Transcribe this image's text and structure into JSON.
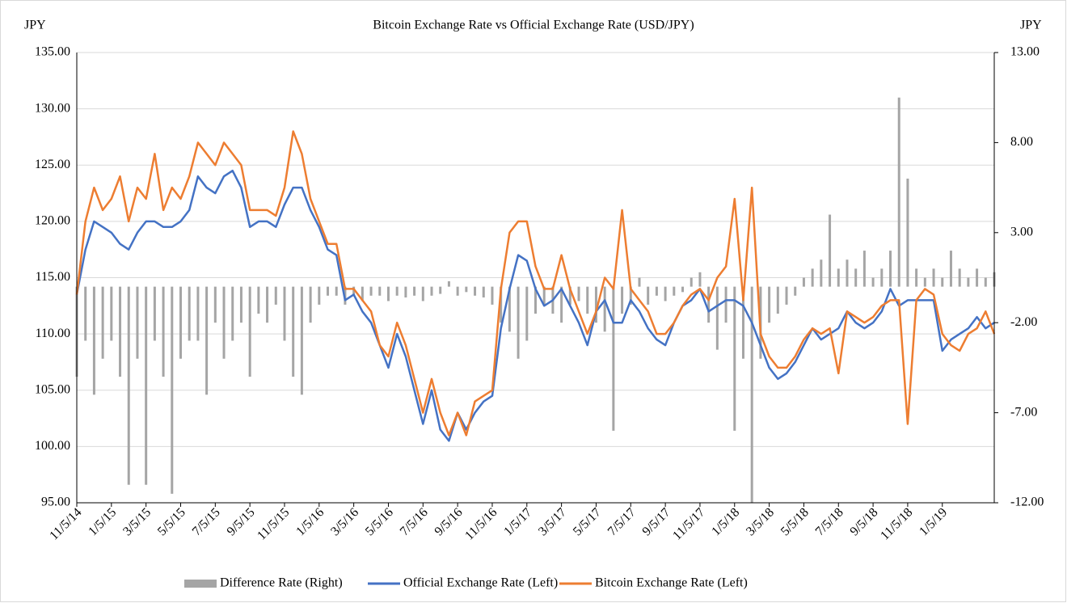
{
  "chart_data": {
    "type": "combo",
    "title": "Bitcoin Exchange Rate vs Official Exchange Rate (USD/JPY)",
    "y_label": "JPY",
    "y2_label": "JPY",
    "categories": [
      "11/5/14",
      null,
      null,
      null,
      "1/5/15",
      null,
      null,
      null,
      "3/5/15",
      null,
      null,
      null,
      "5/5/15",
      null,
      null,
      null,
      "7/5/15",
      null,
      null,
      null,
      "9/5/15",
      null,
      null,
      null,
      "11/5/15",
      null,
      null,
      null,
      "1/5/16",
      null,
      null,
      null,
      "3/5/16",
      null,
      null,
      null,
      "5/5/16",
      null,
      null,
      null,
      "7/5/16",
      null,
      null,
      null,
      "9/5/16",
      null,
      null,
      null,
      "11/5/16",
      null,
      null,
      null,
      "1/5/17",
      null,
      null,
      null,
      "3/5/17",
      null,
      null,
      null,
      "5/5/17",
      null,
      null,
      null,
      "7/5/17",
      null,
      null,
      null,
      "9/5/17",
      null,
      null,
      null,
      "11/5/17",
      null,
      null,
      null,
      "1/5/18",
      null,
      null,
      null,
      "3/5/18",
      null,
      null,
      null,
      "5/5/18",
      null,
      null,
      null,
      "7/5/18",
      null,
      null,
      null,
      "9/5/18",
      null,
      null,
      null,
      "11/5/18",
      null,
      null,
      null,
      "1/5/19",
      null,
      null,
      null,
      null,
      null,
      null
    ],
    "series": [
      {
        "name": "Difference Rate (Right)",
        "type": "bar",
        "axis": "y2",
        "color": "#a5a5a5",
        "values": [
          -5,
          -3,
          -6,
          -4,
          -3,
          -5,
          -11,
          -4,
          -11,
          -3,
          -5,
          -11.5,
          -4,
          -3,
          -3,
          -6,
          -2,
          -4,
          -3,
          -2,
          -5,
          -1.5,
          -2,
          -1,
          -3,
          -5,
          -6,
          -2,
          -1,
          -0.5,
          -0.5,
          -1,
          -0.5,
          -0.8,
          -0.5,
          -0.5,
          -0.8,
          -0.5,
          -0.6,
          -0.5,
          -0.8,
          -0.5,
          -0.4,
          0.3,
          -0.5,
          -0.3,
          -0.5,
          -0.6,
          -1,
          -2,
          -2.5,
          -4,
          -3,
          -1.5,
          -1,
          -1.5,
          -2,
          -1,
          -0.8,
          -1.5,
          -2,
          -2.5,
          -8,
          -1.5,
          -1,
          0.5,
          -1,
          -0.5,
          -0.8,
          -0.5,
          -0.3,
          0.5,
          0.8,
          -2,
          -3.5,
          -2,
          -8,
          -4,
          -12,
          -4,
          -2,
          -1.5,
          -1,
          -0.5,
          0.5,
          1,
          1.5,
          4,
          1,
          1.5,
          1,
          2,
          0.5,
          1,
          2,
          10.5,
          6,
          1,
          0.5,
          1,
          0.5,
          2,
          1,
          0.5,
          1,
          0.5,
          0.8
        ]
      },
      {
        "name": "Official Exchange Rate (Left)",
        "type": "line",
        "color": "#4472c4",
        "values": [
          113.5,
          117.5,
          120,
          119.5,
          119,
          118,
          117.5,
          119,
          120,
          120,
          119.5,
          119.5,
          120,
          121,
          124,
          123,
          122.5,
          124,
          124.5,
          123,
          119.5,
          120,
          120,
          119.5,
          121.5,
          123,
          123,
          121,
          119.5,
          117.5,
          117,
          113,
          113.5,
          112,
          111,
          109,
          107,
          110,
          108,
          105,
          102,
          105,
          101.5,
          100.5,
          103,
          101.5,
          103,
          104,
          104.5,
          110.5,
          114,
          117,
          116.5,
          114,
          112.5,
          113,
          114,
          112.5,
          111,
          109,
          112,
          113,
          111,
          111,
          113,
          112,
          110.5,
          109.5,
          109,
          111,
          112.5,
          113,
          114,
          112,
          112.5,
          113,
          113,
          112.5,
          111,
          109,
          107,
          106,
          106.5,
          107.5,
          109,
          110.5,
          109.5,
          110,
          110.5,
          112,
          111,
          110.5,
          111,
          112,
          114,
          112.5,
          113,
          113,
          113,
          113,
          108.5,
          109.5,
          110,
          110.5,
          111.5,
          110.5,
          111
        ]
      },
      {
        "name": "Bitcoin Exchange Rate (Left)",
        "type": "line",
        "color": "#ed7d31",
        "values": [
          113.5,
          120,
          123,
          121,
          122,
          124,
          120,
          123,
          122,
          126,
          121,
          123,
          122,
          124,
          127,
          126,
          125,
          127,
          126,
          125,
          121,
          121,
          121,
          120.5,
          123,
          128,
          126,
          122,
          120,
          118,
          118,
          114,
          114,
          113,
          112,
          109,
          108,
          111,
          109,
          106,
          103,
          106,
          103,
          101,
          103,
          101,
          104,
          104.5,
          105,
          114,
          119,
          120,
          120,
          116,
          114,
          114,
          117,
          114,
          112,
          110,
          112,
          115,
          114,
          121,
          114,
          113,
          112,
          110,
          110,
          111,
          112.5,
          113.5,
          114,
          113,
          115,
          116,
          122,
          113,
          123,
          110,
          108,
          107,
          107,
          108,
          109.5,
          110.5,
          110,
          110.5,
          106.5,
          112,
          111.5,
          111,
          111.5,
          112.5,
          113,
          113,
          102,
          113,
          114,
          113.5,
          110,
          109,
          108.5,
          110,
          110.5,
          112,
          110
        ]
      }
    ],
    "ylim": [
      95,
      135
    ],
    "yticks": [
      {
        "value": 95,
        "label": "95.00"
      },
      {
        "value": 100,
        "label": "100.00"
      },
      {
        "value": 105,
        "label": "105.00"
      },
      {
        "value": 110,
        "label": "110.00"
      },
      {
        "value": 115,
        "label": "115.00"
      },
      {
        "value": 120,
        "label": "120.00"
      },
      {
        "value": 125,
        "label": "125.00"
      },
      {
        "value": 130,
        "label": "130.00"
      },
      {
        "value": 135,
        "label": "135.00"
      }
    ],
    "y2lim": [
      -12,
      13
    ],
    "y2ticks": [
      {
        "value": -12,
        "label": "-12.00"
      },
      {
        "value": -7,
        "label": "-7.00"
      },
      {
        "value": -2,
        "label": "-2.00"
      },
      {
        "value": 3,
        "label": "3.00"
      },
      {
        "value": 8,
        "label": "8.00"
      },
      {
        "value": 13,
        "label": "13.00"
      }
    ],
    "grid": true,
    "legend": "bottom"
  }
}
